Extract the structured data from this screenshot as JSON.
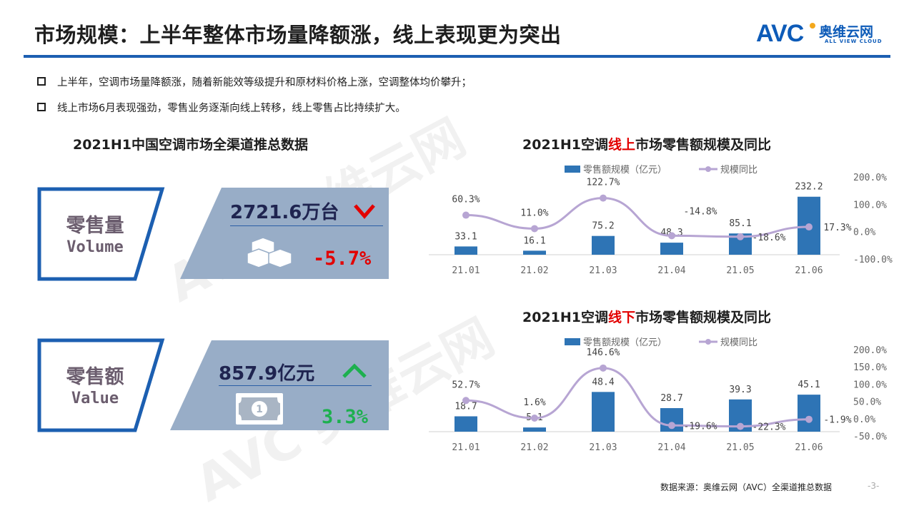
{
  "header": {
    "title": "市场规模：上半年整体市场量降额涨，线上表现更为突出",
    "logo": {
      "mark": "AVC",
      "cn": "奥维云网",
      "en": "ALL VIEW CLOUD"
    }
  },
  "bullets": [
    "上半年，空调市场量降额涨，随着新能效等级提升和原材料价格上涨，空调整体均价攀升；",
    "线上市场6月表现强劲，零售业务逐渐向线上转移，线上零售占比持续扩大。"
  ],
  "left_panel": {
    "title": "2021H1中国空调市场全渠道推总数据",
    "volume": {
      "label_cn": "零售量",
      "label_en": "Volume",
      "value": "2721.6万台",
      "change": "-5.7%",
      "trend": "down",
      "trend_color": "#e30000",
      "icon": "cubes-icon"
    },
    "value": {
      "label_cn": "零售额",
      "label_en": "Value",
      "value": "857.9亿元",
      "change": "3.3%",
      "trend": "up",
      "trend_color": "#1db04f",
      "icon": "banknote-icon"
    }
  },
  "online_chart": {
    "title_pre": "2021H1空调",
    "title_hl": "线上",
    "title_post": "市场零售额规模及同比"
  },
  "offline_chart": {
    "title_pre": "2021H1空调",
    "title_hl": "线下",
    "title_post": "市场零售额规模及同比"
  },
  "chart_data": [
    {
      "type": "bar",
      "title": "2021H1空调线上市场零售额规模及同比",
      "categories": [
        "21.01",
        "21.02",
        "21.03",
        "21.04",
        "21.05",
        "21.06"
      ],
      "series": [
        {
          "name": "零售额规模（亿元）",
          "type": "bar",
          "color": "#2e74b5",
          "values": [
            33.1,
            16.1,
            75.2,
            48.3,
            85.1,
            232.2
          ]
        },
        {
          "name": "规模同比",
          "type": "line",
          "color": "#b7a5d3",
          "axis": "right",
          "values": [
            60.3,
            11.0,
            122.7,
            -14.8,
            -18.6,
            17.3
          ],
          "labels": [
            "60.3%",
            "11.0%",
            "122.7%",
            "-14.8%",
            "-18.6%",
            "17.3%"
          ]
        }
      ],
      "y2_ticks": [
        "200.0%",
        "100.0%",
        "0.0%",
        "-100.0%"
      ],
      "y2lim": [
        -100,
        200
      ],
      "legend_position": "top",
      "grid": false
    },
    {
      "type": "bar",
      "title": "2021H1空调线下市场零售额规模及同比",
      "categories": [
        "21.01",
        "21.02",
        "21.03",
        "21.04",
        "21.05",
        "21.06"
      ],
      "series": [
        {
          "name": "零售额规模（亿元）",
          "type": "bar",
          "color": "#2e74b5",
          "values": [
            18.7,
            5.1,
            48.4,
            28.7,
            39.3,
            45.1
          ]
        },
        {
          "name": "规模同比",
          "type": "line",
          "color": "#b7a5d3",
          "axis": "right",
          "values": [
            52.7,
            1.6,
            146.6,
            -19.6,
            -22.3,
            -1.9
          ],
          "labels": [
            "52.7%",
            "1.6%",
            "146.6%",
            "-19.6%",
            "-22.3%",
            "-1.9%"
          ]
        }
      ],
      "y2_ticks": [
        "200.0%",
        "150.0%",
        "100.0%",
        "50.0%",
        "0.0%",
        "-50.0%"
      ],
      "y2lim": [
        -50,
        200
      ],
      "legend_position": "top",
      "grid": false
    }
  ],
  "footer": {
    "source": "数据来源：奥维云网（AVC）全渠道推总数据",
    "page": "-3-"
  }
}
